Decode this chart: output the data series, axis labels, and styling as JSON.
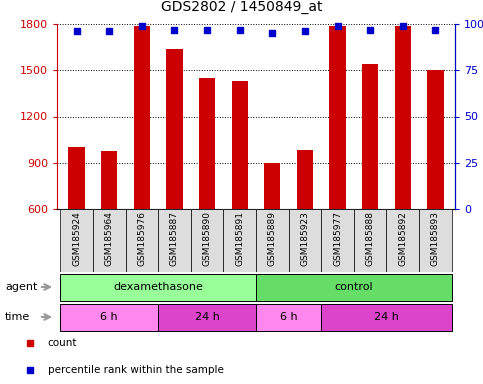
{
  "title": "GDS2802 / 1450849_at",
  "samples": [
    "GSM185924",
    "GSM185964",
    "GSM185976",
    "GSM185887",
    "GSM185890",
    "GSM185891",
    "GSM185889",
    "GSM185923",
    "GSM185977",
    "GSM185888",
    "GSM185892",
    "GSM185893"
  ],
  "counts": [
    1000,
    975,
    1790,
    1640,
    1450,
    1430,
    900,
    980,
    1790,
    1540,
    1790,
    1500
  ],
  "percentile_ranks": [
    96,
    96,
    99,
    97,
    97,
    97,
    95,
    96,
    99,
    97,
    99,
    97
  ],
  "bar_color": "#cc0000",
  "dot_color": "#0000cc",
  "ylim_left": [
    600,
    1800
  ],
  "ylim_right": [
    0,
    100
  ],
  "yticks_left": [
    600,
    900,
    1200,
    1500,
    1800
  ],
  "yticks_right": [
    0,
    25,
    50,
    75,
    100
  ],
  "ytick_labels_right": [
    "0",
    "25",
    "50",
    "75",
    "100%"
  ],
  "agent_groups": [
    {
      "label": "dexamethasone",
      "start": 0,
      "end": 5,
      "color": "#99ff99"
    },
    {
      "label": "control",
      "start": 6,
      "end": 11,
      "color": "#66dd66"
    }
  ],
  "time_groups": [
    {
      "label": "6 h",
      "start": 0,
      "end": 2,
      "color": "#ff88ee"
    },
    {
      "label": "24 h",
      "start": 3,
      "end": 5,
      "color": "#dd44cc"
    },
    {
      "label": "6 h",
      "start": 6,
      "end": 7,
      "color": "#ff88ee"
    },
    {
      "label": "24 h",
      "start": 8,
      "end": 11,
      "color": "#dd44cc"
    }
  ],
  "legend_items": [
    {
      "color": "#cc0000",
      "label": "count"
    },
    {
      "color": "#0000cc",
      "label": "percentile rank within the sample"
    }
  ],
  "agent_label": "agent",
  "time_label": "time",
  "bar_width": 0.5,
  "grid_color": "black",
  "background_color": "white",
  "tick_label_color_left": "#cc0000",
  "tick_label_color_right": "#0000cc",
  "sample_box_color": "#dddddd",
  "arrow_color": "#999999"
}
